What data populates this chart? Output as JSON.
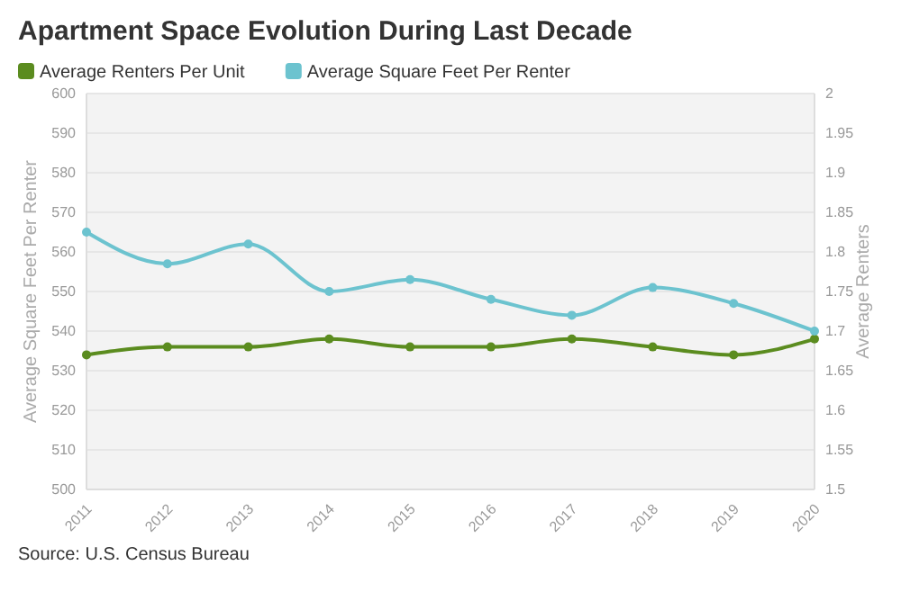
{
  "chart_data": {
    "type": "line",
    "title": "Apartment Space Evolution During Last Decade",
    "x": [
      2011,
      2012,
      2013,
      2014,
      2015,
      2016,
      2017,
      2018,
      2019,
      2020
    ],
    "xlim": [
      2011,
      2020
    ],
    "xticks": [
      2011,
      2012,
      2013,
      2014,
      2015,
      2016,
      2017,
      2018,
      2019,
      2020
    ],
    "series": [
      {
        "name": "Average Renters Per Unit",
        "color": "#5b8c1f",
        "axis": "y2",
        "values": [
          1.67,
          1.68,
          1.68,
          1.69,
          1.68,
          1.68,
          1.69,
          1.68,
          1.67,
          1.69
        ]
      },
      {
        "name": "Average Square Feet Per Renter",
        "color": "#6cc3cf",
        "values": [
          565,
          557,
          562,
          550,
          553,
          548,
          544,
          551,
          547,
          540
        ]
      }
    ],
    "ylabel": "Average Square Feet Per Renter",
    "y2label": "Average Renters",
    "ylim": [
      500,
      600
    ],
    "yticks": [
      500,
      510,
      520,
      530,
      540,
      550,
      560,
      570,
      580,
      590,
      600
    ],
    "y2lim": [
      1.5,
      2
    ],
    "y2ticks": [
      1.5,
      1.55,
      1.6,
      1.65,
      1.7,
      1.75,
      1.8,
      1.85,
      1.9,
      1.95,
      2
    ],
    "grid": "y",
    "legend": "top left",
    "marker": "circle",
    "line_style": "solid",
    "annotations": [
      "Source: U.S. Census Bureau"
    ]
  }
}
